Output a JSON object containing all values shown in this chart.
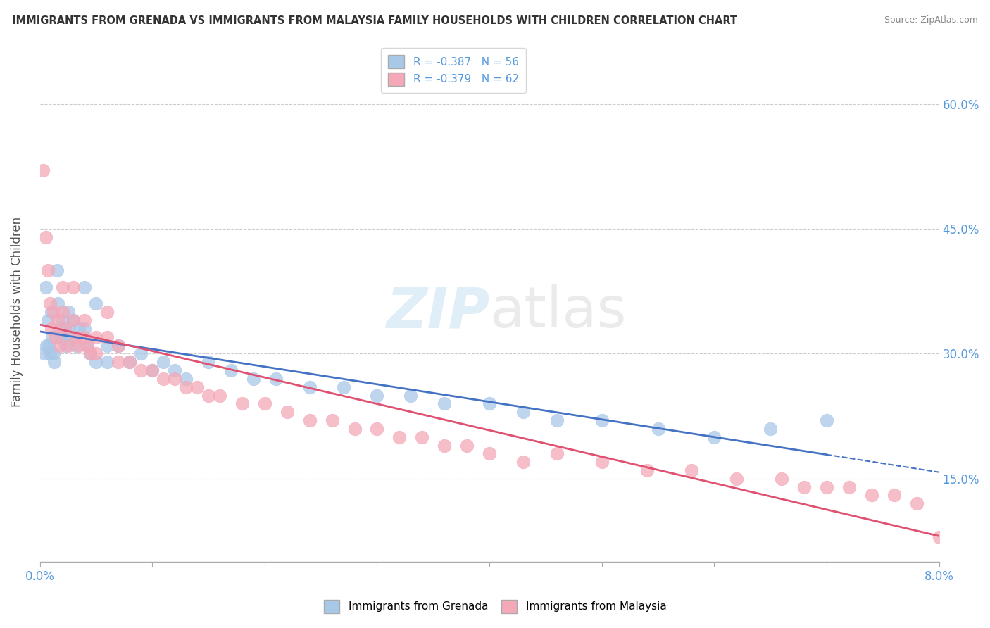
{
  "title": "IMMIGRANTS FROM GRENADA VS IMMIGRANTS FROM MALAYSIA FAMILY HOUSEHOLDS WITH CHILDREN CORRELATION CHART",
  "source": "Source: ZipAtlas.com",
  "ylabel": "Family Households with Children",
  "xlim": [
    0.0,
    0.08
  ],
  "ylim": [
    0.05,
    0.65
  ],
  "x_ticks": [
    0.0,
    0.01,
    0.02,
    0.03,
    0.04,
    0.05,
    0.06,
    0.07,
    0.08
  ],
  "x_tick_labels": [
    "0.0%",
    "",
    "",
    "",
    "",
    "",
    "",
    "",
    "8.0%"
  ],
  "y_ticks": [
    0.15,
    0.3,
    0.45,
    0.6
  ],
  "y_tick_labels": [
    "15.0%",
    "30.0%",
    "45.0%",
    "60.0%"
  ],
  "grenada_color": "#a8c8e8",
  "malaysia_color": "#f4a8b8",
  "grenada_line_color": "#4472c4",
  "malaysia_line_color": "#e05070",
  "watermark_zip": "ZIP",
  "watermark_atlas": "atlas",
  "background_color": "#ffffff",
  "grid_color": "#cccccc",
  "grenada_x": [
    0.0004,
    0.0005,
    0.0006,
    0.0007,
    0.0008,
    0.0009,
    0.001,
    0.0011,
    0.0012,
    0.0013,
    0.0015,
    0.0016,
    0.0017,
    0.0018,
    0.002,
    0.002,
    0.0022,
    0.0023,
    0.0025,
    0.0026,
    0.003,
    0.003,
    0.0032,
    0.0035,
    0.004,
    0.004,
    0.0042,
    0.0045,
    0.005,
    0.005,
    0.006,
    0.006,
    0.007,
    0.008,
    0.009,
    0.01,
    0.011,
    0.012,
    0.013,
    0.015,
    0.017,
    0.019,
    0.021,
    0.024,
    0.027,
    0.03,
    0.033,
    0.036,
    0.04,
    0.043,
    0.046,
    0.05,
    0.055,
    0.06,
    0.065,
    0.07
  ],
  "grenada_y": [
    0.3,
    0.38,
    0.31,
    0.34,
    0.31,
    0.3,
    0.35,
    0.32,
    0.3,
    0.29,
    0.4,
    0.36,
    0.33,
    0.32,
    0.34,
    0.32,
    0.33,
    0.31,
    0.35,
    0.33,
    0.34,
    0.32,
    0.31,
    0.33,
    0.38,
    0.33,
    0.31,
    0.3,
    0.36,
    0.29,
    0.31,
    0.29,
    0.31,
    0.29,
    0.3,
    0.28,
    0.29,
    0.28,
    0.27,
    0.29,
    0.28,
    0.27,
    0.27,
    0.26,
    0.26,
    0.25,
    0.25,
    0.24,
    0.24,
    0.23,
    0.22,
    0.22,
    0.21,
    0.2,
    0.21,
    0.22
  ],
  "malaysia_x": [
    0.0003,
    0.0005,
    0.0007,
    0.0009,
    0.001,
    0.0012,
    0.0014,
    0.0016,
    0.0018,
    0.002,
    0.002,
    0.0022,
    0.0025,
    0.003,
    0.003,
    0.0032,
    0.0035,
    0.004,
    0.004,
    0.0042,
    0.0045,
    0.005,
    0.005,
    0.006,
    0.006,
    0.007,
    0.007,
    0.008,
    0.009,
    0.01,
    0.011,
    0.012,
    0.013,
    0.014,
    0.015,
    0.016,
    0.018,
    0.02,
    0.022,
    0.024,
    0.026,
    0.028,
    0.03,
    0.032,
    0.034,
    0.036,
    0.038,
    0.04,
    0.043,
    0.046,
    0.05,
    0.054,
    0.058,
    0.062,
    0.066,
    0.068,
    0.07,
    0.072,
    0.074,
    0.076,
    0.078,
    0.08
  ],
  "malaysia_y": [
    0.52,
    0.44,
    0.4,
    0.36,
    0.33,
    0.35,
    0.32,
    0.34,
    0.31,
    0.38,
    0.35,
    0.33,
    0.31,
    0.38,
    0.34,
    0.32,
    0.31,
    0.34,
    0.32,
    0.31,
    0.3,
    0.32,
    0.3,
    0.35,
    0.32,
    0.31,
    0.29,
    0.29,
    0.28,
    0.28,
    0.27,
    0.27,
    0.26,
    0.26,
    0.25,
    0.25,
    0.24,
    0.24,
    0.23,
    0.22,
    0.22,
    0.21,
    0.21,
    0.2,
    0.2,
    0.19,
    0.19,
    0.18,
    0.17,
    0.18,
    0.17,
    0.16,
    0.16,
    0.15,
    0.15,
    0.14,
    0.14,
    0.14,
    0.13,
    0.13,
    0.12,
    0.08
  ]
}
